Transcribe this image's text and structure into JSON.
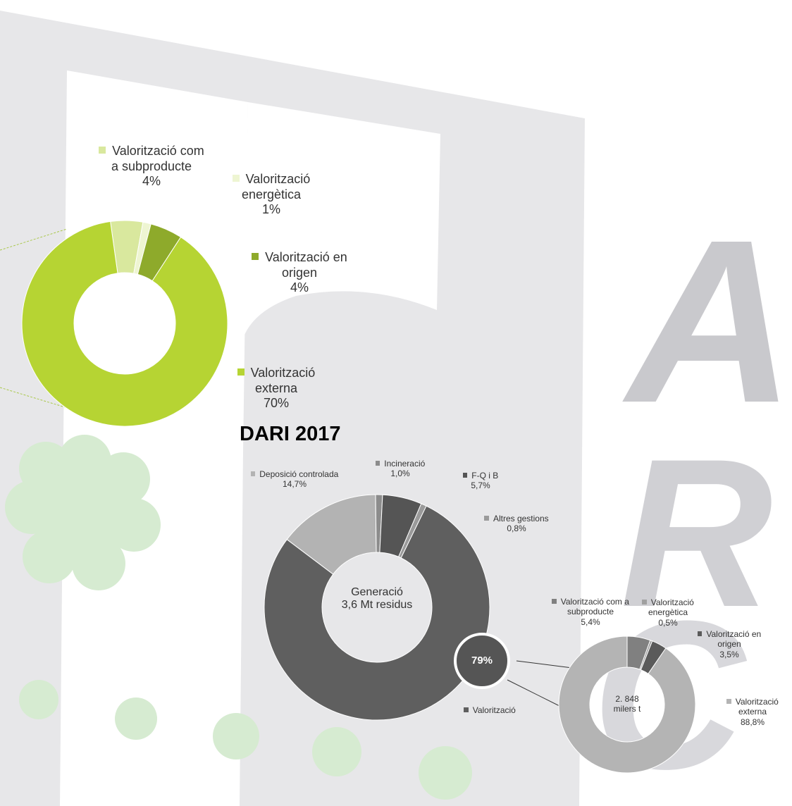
{
  "chart_data": [
    {
      "type": "pie",
      "categories": [
        "Valorització com a subproducte",
        "Valorització energètica",
        "Valorització en origen",
        "Valorització externa"
      ],
      "values": [
        4,
        1,
        4,
        70
      ],
      "value_labels": [
        "4%",
        "1%",
        "4%",
        "70%"
      ],
      "colors": [
        "#d9e89e",
        "#eef5d2",
        "#8eaa2b",
        "#b6d433"
      ]
    },
    {
      "type": "pie",
      "title": "DARI 2017",
      "center_label": "Generació\n3,6 Mt residus",
      "categories": [
        "Deposició controlada",
        "Incineració",
        "F-Q i B",
        "Altres gestions",
        "Valorització"
      ],
      "values": [
        14.7,
        1.0,
        5.7,
        0.8,
        79
      ],
      "value_labels": [
        "14,7%",
        "1,0%",
        "5,7%",
        "0,8%",
        "79%"
      ],
      "colors": [
        "#b3b3b3",
        "#8c8c8c",
        "#555555",
        "#9a9a9a",
        "#5f5f5f"
      ]
    },
    {
      "type": "pie",
      "center_label": "2. 848\nmilers  t",
      "categories": [
        "Valorització com a subproducte",
        "Valorització energètica",
        "Valorització en origen",
        "Valorització externa"
      ],
      "values": [
        5.4,
        0.5,
        3.5,
        88.8
      ],
      "value_labels": [
        "5,4%",
        "0,5%",
        "3,5%",
        "88,8%"
      ],
      "colors": [
        "#808080",
        "#a0a0a0",
        "#5a5a5a",
        "#b4b4b4"
      ]
    }
  ]
}
